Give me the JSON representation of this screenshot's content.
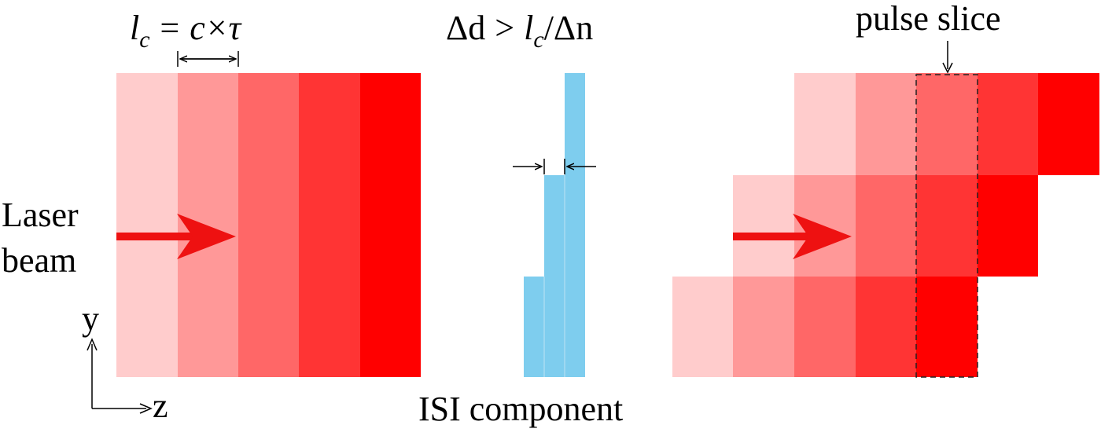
{
  "labels": {
    "coherence_eq": {
      "l": "l",
      "c_sub": "c",
      "rhs": "= c×τ"
    },
    "condition": {
      "delta_d": "Δd",
      "rel": ">",
      "l": "l",
      "c_sub": "c",
      "rest": "/Δn"
    },
    "pulse_slice": "pulse slice",
    "laser": "Laser",
    "beam": "beam",
    "axis_y": "y",
    "axis_z": "z",
    "isi_component": "ISI component"
  },
  "colors": {
    "shade_1": "#ffcccc",
    "shade_2": "#ff9898",
    "shade_3": "#ff6767",
    "shade_4": "#ff3434",
    "shade_5": "#ff0000",
    "beam_arrow": "#ee1111",
    "isi_blue": "#7ecdee",
    "isi_line": "#a8dcf2"
  }
}
